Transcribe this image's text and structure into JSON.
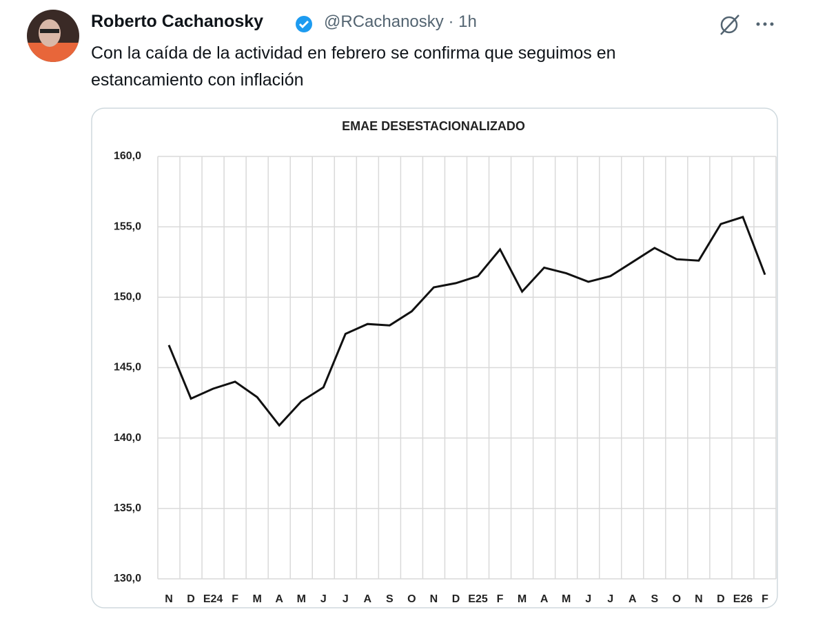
{
  "tweet": {
    "author": "Roberto Cachanosky",
    "handle": "@RCachanosky",
    "separator": "·",
    "time": "1h",
    "text": "Con la caída de la actividad en febrero se confirma que seguimos en estancamiento con inflación"
  },
  "chart_data": {
    "type": "line",
    "title": "EMAE DESESTACIONALIZADO",
    "categories": [
      "N",
      "D",
      "E24",
      "F",
      "M",
      "A",
      "M",
      "J",
      "J",
      "A",
      "S",
      "O",
      "N",
      "D",
      "E25",
      "F",
      "M",
      "A",
      "M",
      "J",
      "J",
      "A",
      "S",
      "O",
      "N",
      "D",
      "E26",
      "F"
    ],
    "values": [
      146.6,
      142.8,
      143.5,
      144.0,
      142.9,
      140.9,
      142.6,
      143.6,
      147.4,
      148.1,
      148.0,
      149.0,
      150.7,
      151.0,
      151.5,
      153.4,
      150.4,
      152.1,
      151.7,
      151.1,
      151.5,
      152.5,
      153.5,
      152.7,
      152.6,
      155.2,
      155.7,
      151.6
    ],
    "color": "#111111",
    "ylim": [
      130,
      160
    ],
    "yticks": [
      {
        "value": 130,
        "label": "130,0"
      },
      {
        "value": 135,
        "label": "135,0"
      },
      {
        "value": 140,
        "label": "140,0"
      },
      {
        "value": 145,
        "label": "145,0"
      },
      {
        "value": 150,
        "label": "150,0"
      },
      {
        "value": 155,
        "label": "155,0"
      },
      {
        "value": 160,
        "label": "160,0"
      }
    ],
    "grid": true
  }
}
